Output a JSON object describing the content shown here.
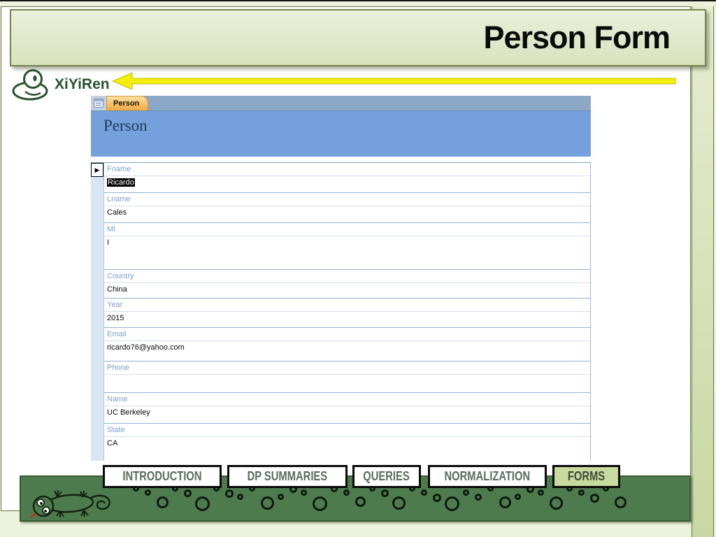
{
  "title_bar": {
    "title": "Person Form"
  },
  "logo": {
    "text": "XiYiRen"
  },
  "access_form": {
    "tab_label": "Person",
    "header_title": "Person",
    "fields": [
      {
        "label": "Fname",
        "value": "Ricardo",
        "selected": true
      },
      {
        "label": "Lname",
        "value": "Cales",
        "selected": false
      },
      {
        "label": "MI",
        "value": "I",
        "selected": false
      },
      {
        "label": "Country",
        "value": "China",
        "selected": false
      },
      {
        "label": "Year",
        "value": "2015",
        "selected": false
      },
      {
        "label": "Email",
        "value": "ricardo76@yahoo.com",
        "selected": false
      },
      {
        "label": "Phone",
        "value": "",
        "selected": false
      },
      {
        "label": "Name",
        "value": "UC Berkeley",
        "selected": false
      },
      {
        "label": "State",
        "value": "CA",
        "selected": false
      }
    ]
  },
  "nav": {
    "items": [
      {
        "label": "INTRODUCTION",
        "active": false
      },
      {
        "label": "DP SUMMARIES",
        "active": false
      },
      {
        "label": "QUERIES",
        "active": false
      },
      {
        "label": "NORMALIZATION",
        "active": false
      },
      {
        "label": "FORMS",
        "active": true
      }
    ]
  },
  "colors": {
    "accent_yellow": "#F3EE0B",
    "footer_green": "#4E7B4E",
    "panel_green_light": "#DFE7C9",
    "nav_active_green": "#C9DA9E",
    "form_header_blue": "#74A1DC",
    "tab_bar_blue": "#8DA7C7",
    "tab_orange": "#F5B85C",
    "field_label_blue": "#7DA0C8"
  }
}
